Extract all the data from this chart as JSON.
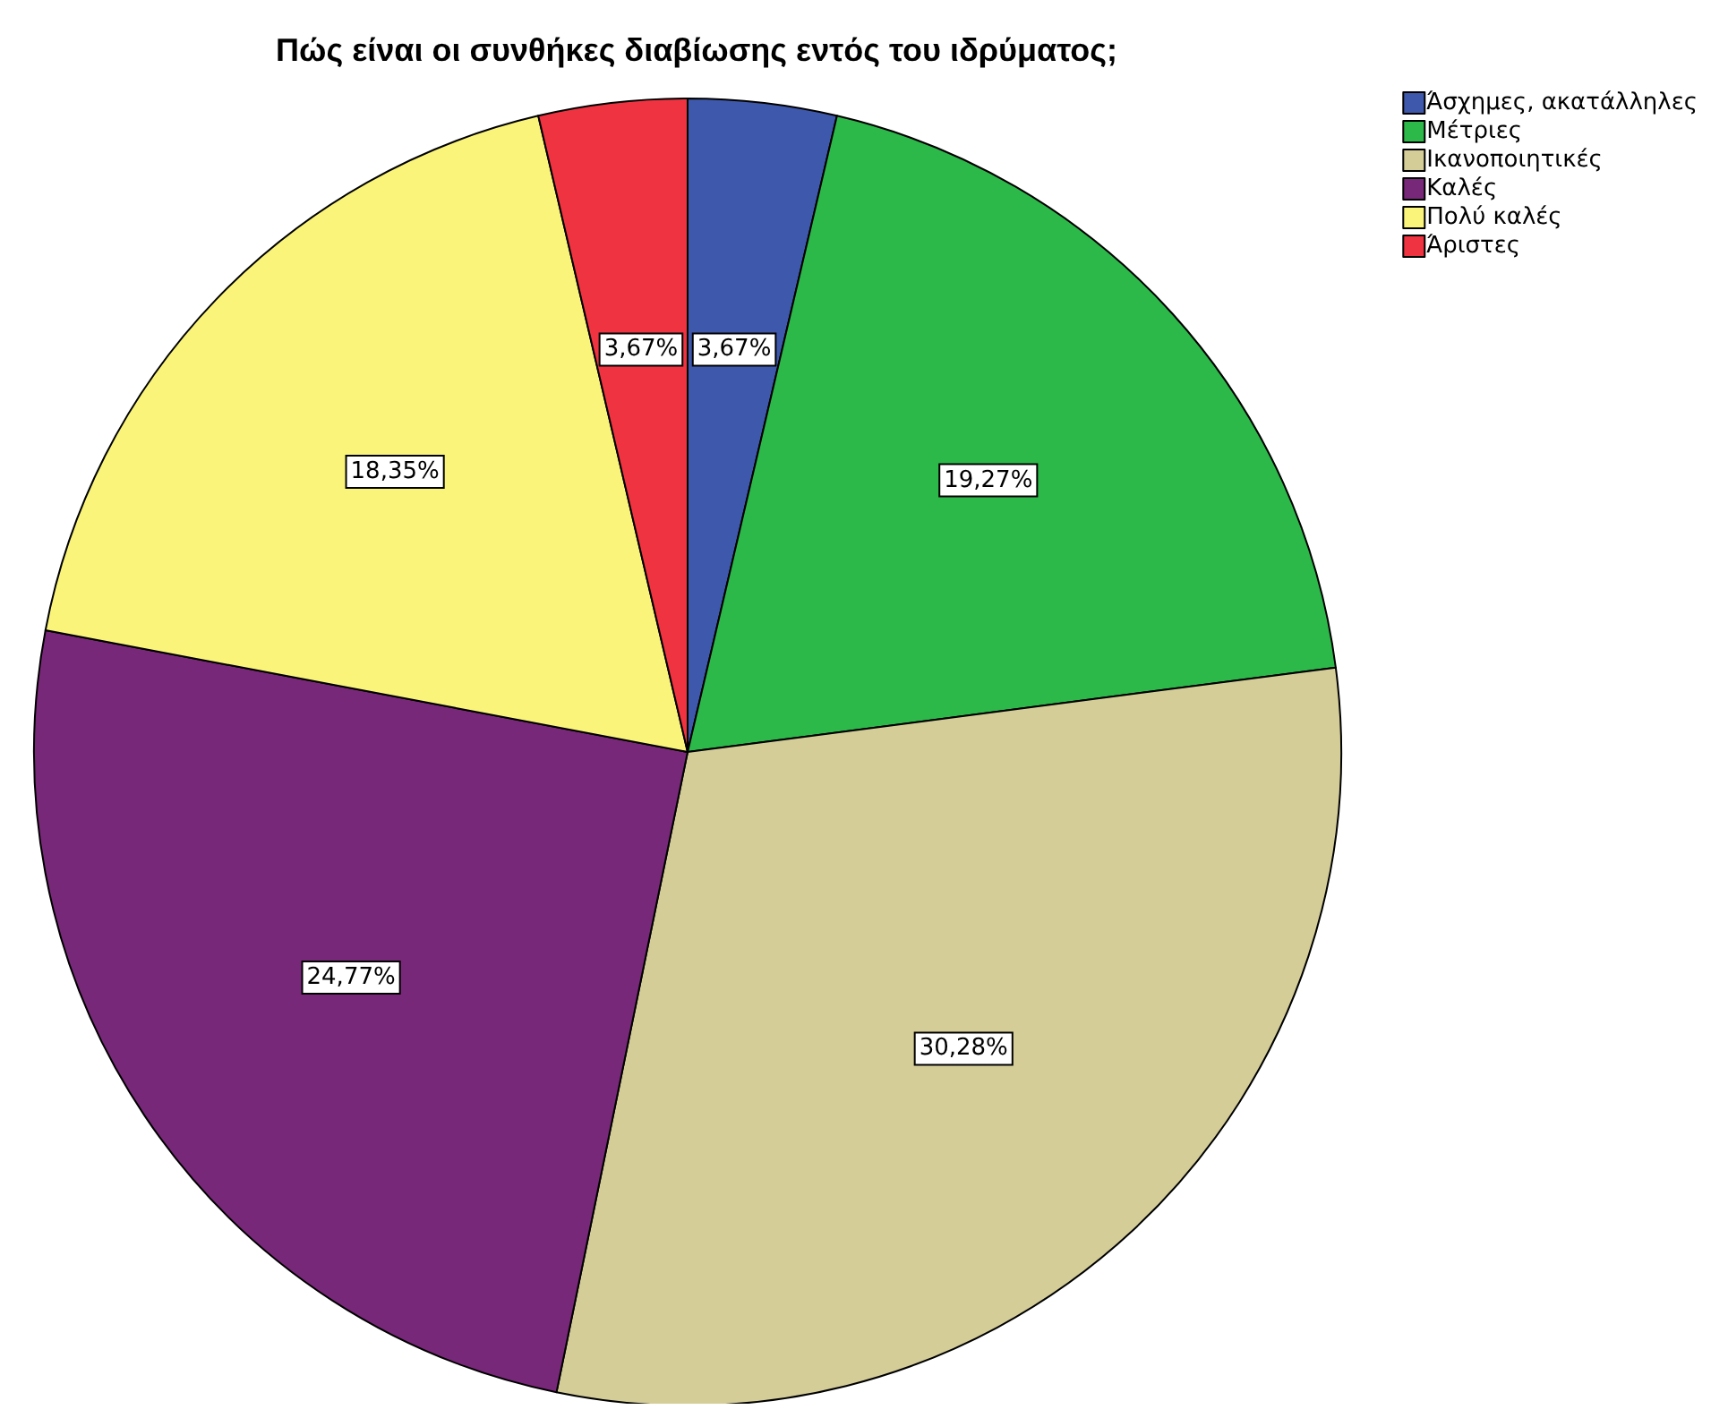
{
  "chart_data": {
    "type": "pie",
    "title": "Πώς είναι οι συνθήκες διαβίωσης εντός του ιδρύματος;",
    "categories": [
      "Άσχημες, ακατάλληλες",
      "Μέτριες",
      "Ικανοποιητικές",
      "Καλές",
      "Πολύ καλές",
      "Άριστες"
    ],
    "values": [
      3.67,
      19.27,
      30.28,
      24.77,
      18.35,
      3.67
    ],
    "colors": [
      "#3e58ac",
      "#2db84a",
      "#d4cd98",
      "#782878",
      "#faf57a",
      "#ef3340"
    ],
    "value_labels": [
      "3,67%",
      "19,27%",
      "30,28%",
      "24,77%",
      "18,35%",
      "3,67%"
    ],
    "legend": "top right"
  }
}
